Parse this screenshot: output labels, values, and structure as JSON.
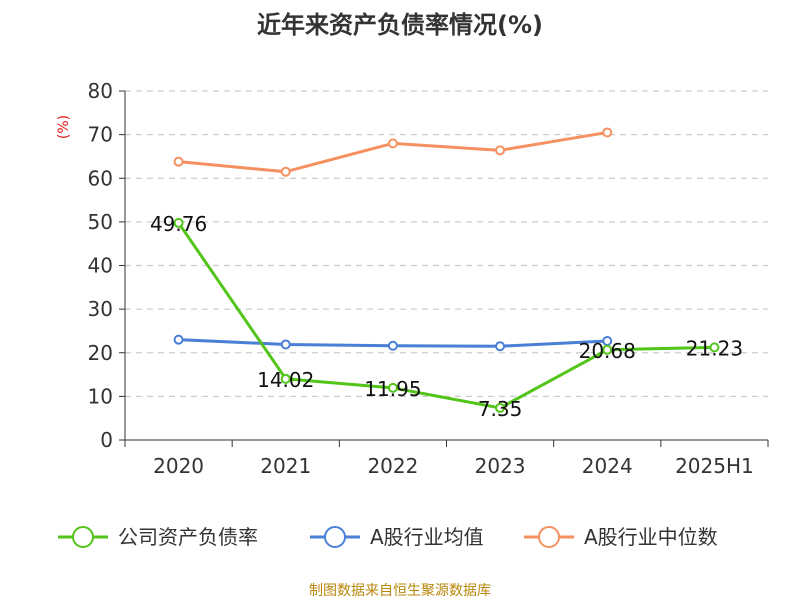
{
  "chart_data": {
    "type": "line",
    "title": "近年来资产负债率情况(%)",
    "xlabel": "",
    "ylabel": "(%)",
    "categories": [
      "2020",
      "2021",
      "2022",
      "2023",
      "2024",
      "2025H1"
    ],
    "ylim": [
      0,
      80
    ],
    "yticks": [
      0,
      10,
      20,
      30,
      40,
      50,
      60,
      70,
      80
    ],
    "grid": true,
    "legend_position": "bottom",
    "series": [
      {
        "name": "公司资产负债率",
        "color": "#52c41a",
        "values": [
          49.76,
          14.02,
          11.95,
          7.35,
          20.68,
          21.23
        ],
        "labels": [
          "49.76",
          "14.02",
          "11.95",
          "7.35",
          "20.68",
          "21.23"
        ]
      },
      {
        "name": "A股行业均值",
        "color": "#4a7fd6",
        "values": [
          23.0,
          21.9,
          21.6,
          21.5,
          22.7,
          null
        ]
      },
      {
        "name": "A股行业中位数",
        "color": "#f59160",
        "values": [
          63.8,
          61.5,
          68.0,
          66.4,
          70.5,
          null
        ]
      }
    ]
  },
  "source": "制图数据来自恒生聚源数据库"
}
